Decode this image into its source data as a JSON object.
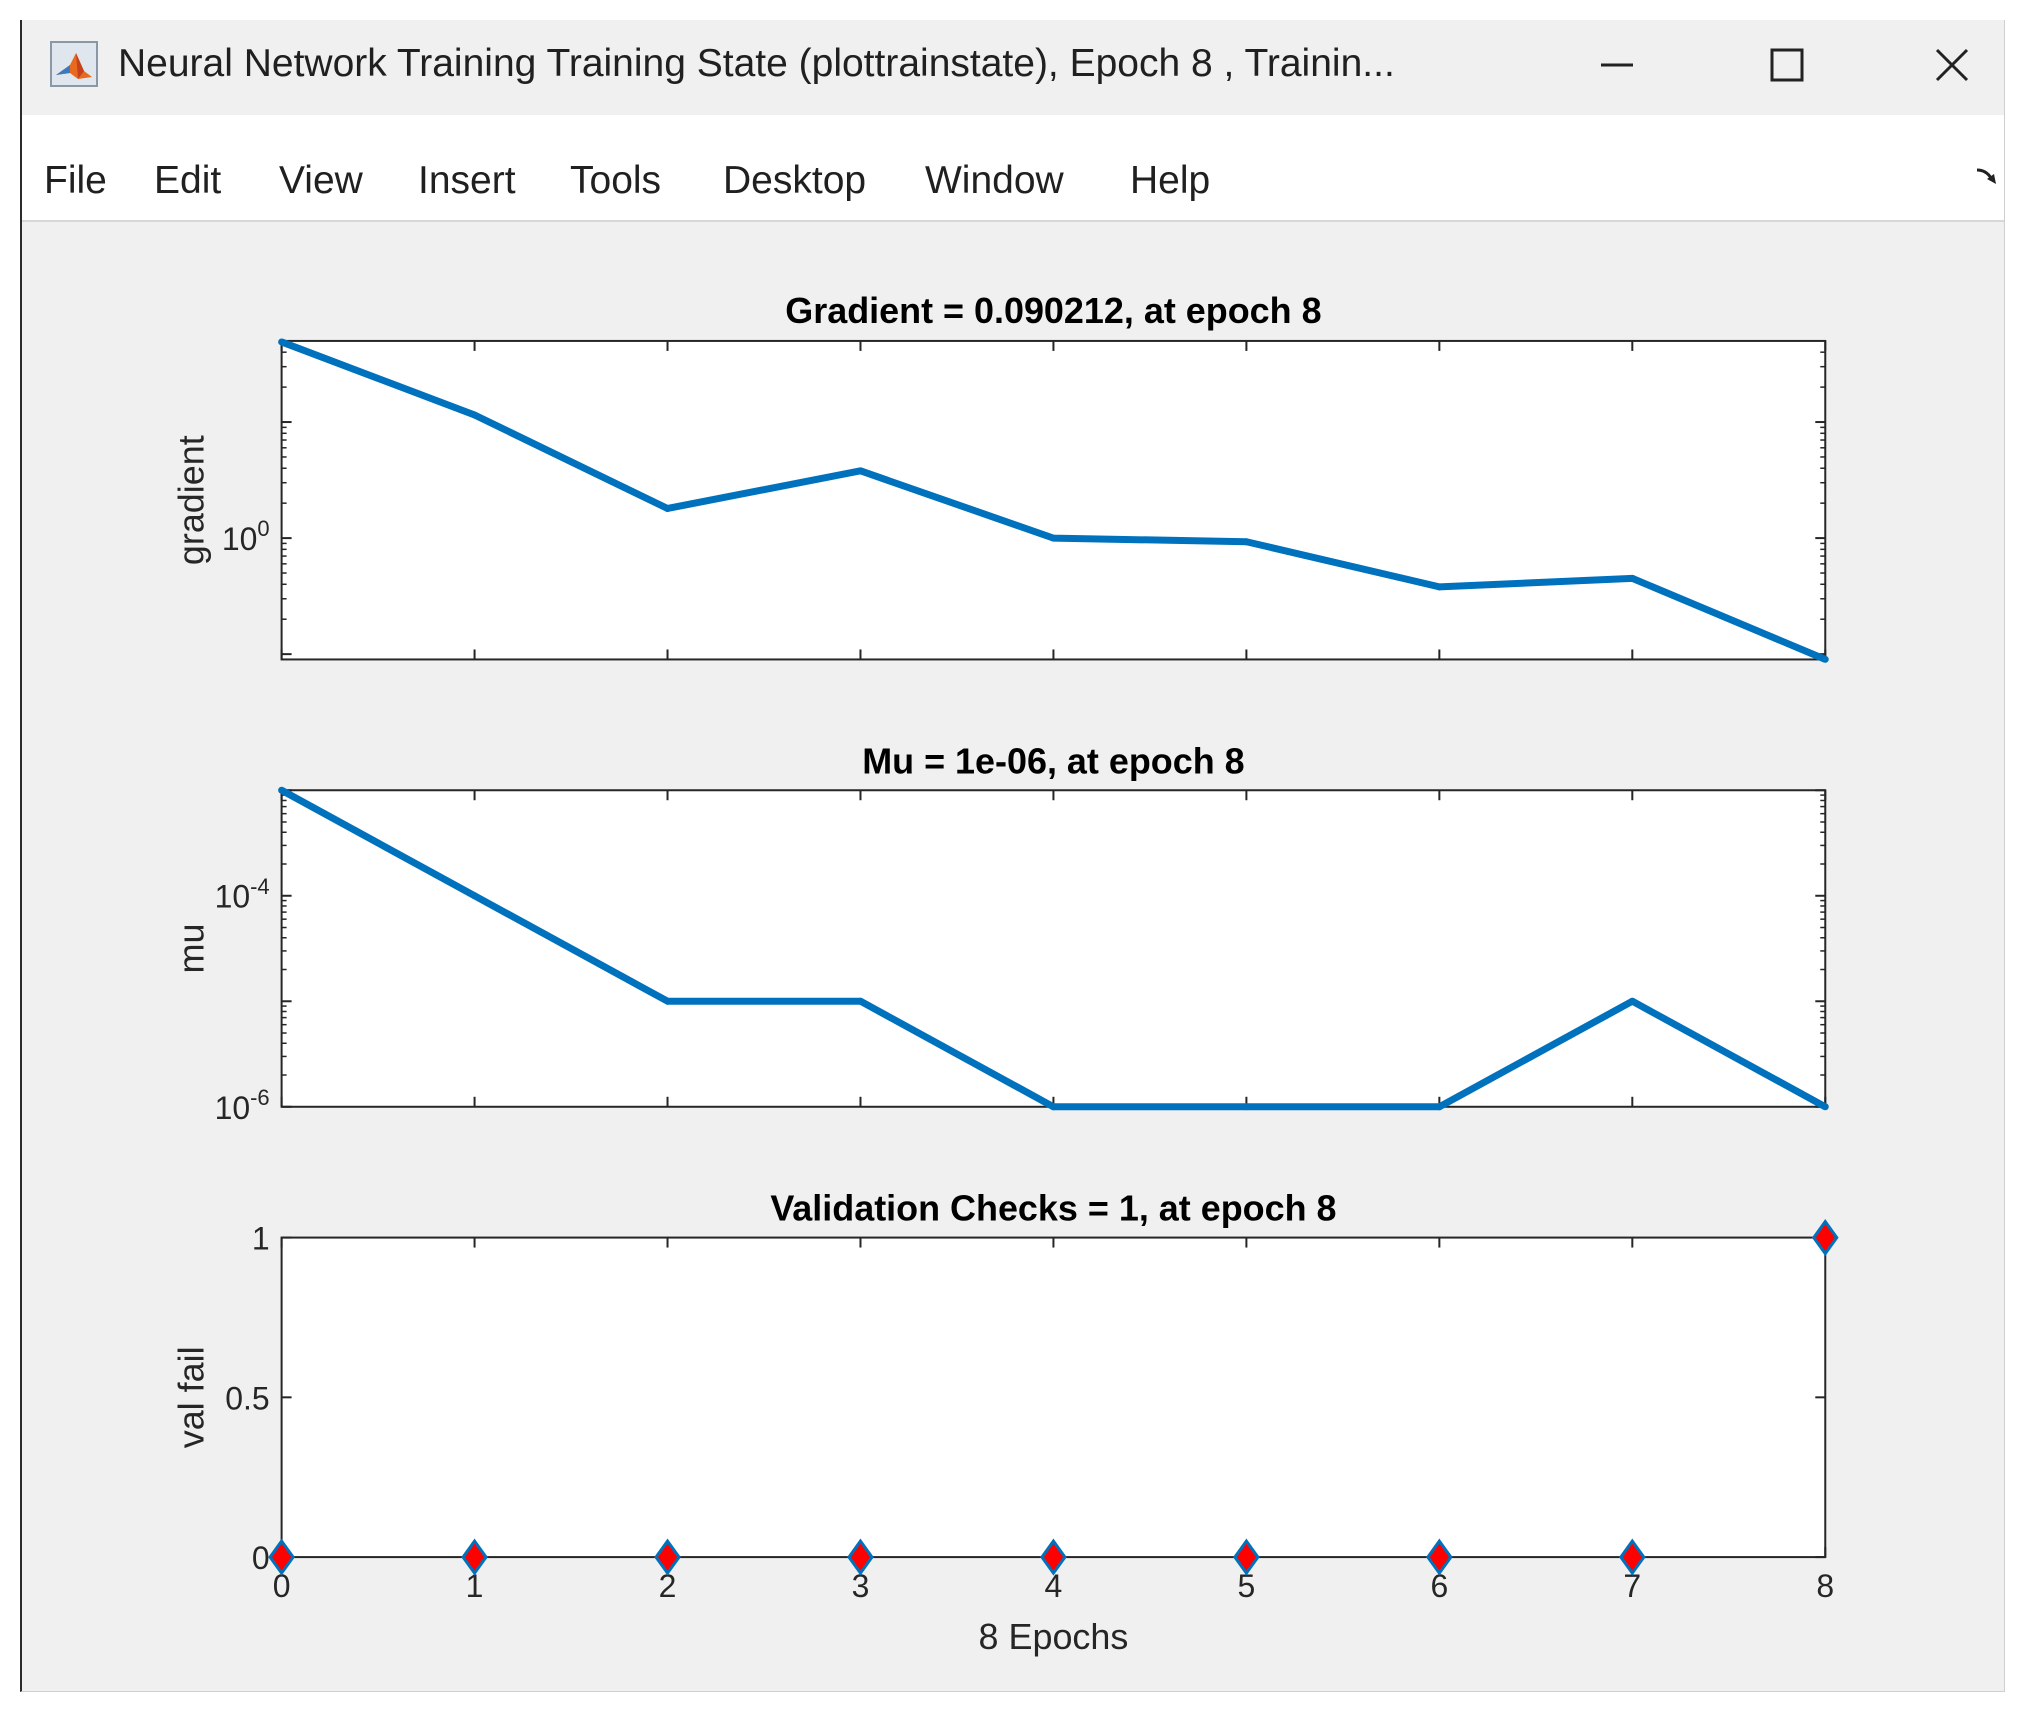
{
  "window": {
    "title": "Neural Network Training Training State (plottrainstate), Epoch 8 , Trainin...",
    "app_icon": "matlab-logo-icon",
    "controls": [
      "minimize-icon",
      "maximize-icon",
      "close-icon"
    ]
  },
  "menu": {
    "items": [
      "File",
      "Edit",
      "View",
      "Insert",
      "Tools",
      "Desktop",
      "Window",
      "Help"
    ]
  },
  "colors": {
    "line": "#0072bd",
    "marker_fill": "#ff0000",
    "marker_edge": "#0072bd",
    "figure_bg": "#f0f0f0",
    "axes_bg": "#ffffff"
  },
  "chart_data": [
    {
      "type": "line",
      "title": "Gradient = 0.090212, at epoch 8",
      "ylabel": "gradient",
      "yscale": "log",
      "ytick_labels": [
        {
          "base": "10",
          "exp": "0"
        }
      ],
      "x": [
        0,
        1,
        2,
        3,
        4,
        5,
        6,
        7,
        8
      ],
      "values": [
        49,
        11.5,
        1.8,
        3.8,
        1.0,
        0.93,
        0.38,
        0.45,
        0.090212
      ],
      "xlim": [
        0,
        8
      ],
      "ylim": [
        0.09,
        50
      ],
      "grid": false,
      "xtick_labels_visible": false
    },
    {
      "type": "line",
      "title": "Mu = 1e-06, at epoch 8",
      "ylabel": "mu",
      "yscale": "log",
      "ytick_labels": [
        {
          "base": "10",
          "exp": "-4"
        },
        {
          "base": "10",
          "exp": "-6"
        }
      ],
      "x": [
        0,
        1,
        2,
        3,
        4,
        5,
        6,
        7,
        8
      ],
      "values": [
        0.001,
        0.0001,
        1e-05,
        1e-05,
        1e-06,
        1e-06,
        1e-06,
        1e-05,
        1e-06
      ],
      "xlim": [
        0,
        8
      ],
      "ylim": [
        1e-06,
        0.001
      ],
      "grid": false,
      "xtick_labels_visible": false
    },
    {
      "type": "scatter",
      "title": "Validation Checks = 1, at epoch 8",
      "ylabel": "val fail",
      "xlabel": "8 Epochs",
      "x": [
        0,
        1,
        2,
        3,
        4,
        5,
        6,
        7,
        8
      ],
      "values": [
        0,
        0,
        0,
        0,
        0,
        0,
        0,
        0,
        1
      ],
      "xlim": [
        0,
        8
      ],
      "ylim": [
        0,
        1
      ],
      "ytick_labels": [
        "0",
        "0.5",
        "1"
      ],
      "xtick_labels": [
        "0",
        "1",
        "2",
        "3",
        "4",
        "5",
        "6",
        "7",
        "8"
      ],
      "marker": "diamond",
      "grid": false
    }
  ]
}
